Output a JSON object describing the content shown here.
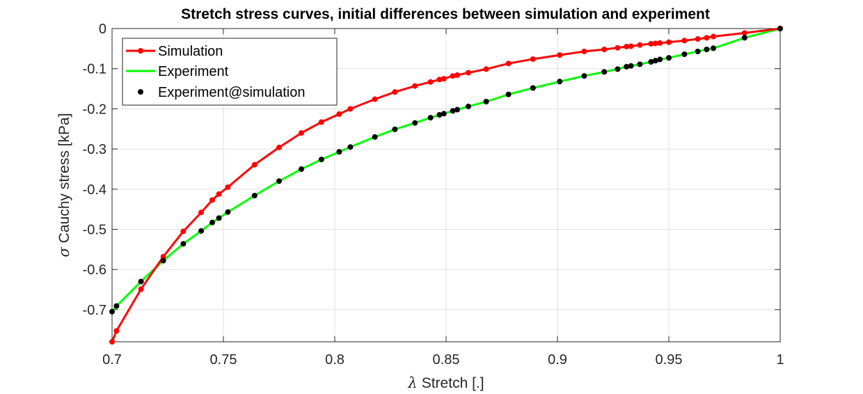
{
  "chart_data": {
    "type": "line",
    "title": "Stretch stress curves, initial differences between simulation and experiment",
    "xlabel_symbol": "λ",
    "xlabel": "Stretch [.]",
    "ylabel_symbol": "σ",
    "ylabel": "Cauchy stress [kPa]",
    "xlim": [
      0.7,
      1.0
    ],
    "ylim": [
      -0.78,
      0.0
    ],
    "xticks": [
      0.7,
      0.75,
      0.8,
      0.85,
      0.9,
      0.95,
      1.0
    ],
    "xtick_labels": [
      "0.7",
      "0.75",
      "0.8",
      "0.85",
      "0.9",
      "0.95",
      "1"
    ],
    "yticks": [
      0,
      -0.1,
      -0.2,
      -0.3,
      -0.4,
      -0.5,
      -0.6,
      -0.7
    ],
    "ytick_labels": [
      "0",
      "-0.1",
      "-0.2",
      "-0.3",
      "-0.4",
      "-0.5",
      "-0.6",
      "-0.7"
    ],
    "grid": true,
    "legend_position": "top-left",
    "series": [
      {
        "name": "Simulation",
        "color": "#ff0000",
        "style": "line-with-markers",
        "x": [
          0.7,
          0.702,
          0.713,
          0.723,
          0.732,
          0.74,
          0.745,
          0.748,
          0.752,
          0.764,
          0.775,
          0.785,
          0.794,
          0.802,
          0.807,
          0.818,
          0.827,
          0.836,
          0.843,
          0.847,
          0.849,
          0.853,
          0.855,
          0.86,
          0.868,
          0.878,
          0.889,
          0.901,
          0.912,
          0.921,
          0.927,
          0.931,
          0.933,
          0.937,
          0.942,
          0.944,
          0.946,
          0.95,
          0.957,
          0.963,
          0.967,
          0.97,
          0.984,
          1.0
        ],
        "y": [
          -0.78,
          -0.753,
          -0.649,
          -0.568,
          -0.505,
          -0.458,
          -0.427,
          -0.412,
          -0.395,
          -0.339,
          -0.296,
          -0.26,
          -0.233,
          -0.213,
          -0.2,
          -0.176,
          -0.158,
          -0.143,
          -0.133,
          -0.127,
          -0.125,
          -0.118,
          -0.116,
          -0.11,
          -0.101,
          -0.087,
          -0.076,
          -0.066,
          -0.057,
          -0.052,
          -0.048,
          -0.045,
          -0.044,
          -0.041,
          -0.038,
          -0.037,
          -0.036,
          -0.034,
          -0.03,
          -0.026,
          -0.023,
          -0.02,
          -0.011,
          0.0
        ]
      },
      {
        "name": "Experiment",
        "color": "#00ff00",
        "style": "line",
        "x": [
          0.7,
          0.702,
          0.713,
          0.723,
          0.732,
          0.74,
          0.745,
          0.748,
          0.752,
          0.764,
          0.775,
          0.785,
          0.794,
          0.802,
          0.807,
          0.818,
          0.827,
          0.836,
          0.843,
          0.847,
          0.849,
          0.853,
          0.855,
          0.86,
          0.868,
          0.878,
          0.889,
          0.901,
          0.912,
          0.921,
          0.927,
          0.931,
          0.933,
          0.937,
          0.942,
          0.944,
          0.946,
          0.95,
          0.957,
          0.963,
          0.967,
          0.97,
          0.984,
          1.0
        ],
        "y": [
          -0.705,
          -0.691,
          -0.63,
          -0.578,
          -0.536,
          -0.504,
          -0.483,
          -0.472,
          -0.457,
          -0.416,
          -0.38,
          -0.35,
          -0.326,
          -0.307,
          -0.295,
          -0.27,
          -0.251,
          -0.235,
          -0.222,
          -0.215,
          -0.212,
          -0.205,
          -0.202,
          -0.194,
          -0.182,
          -0.164,
          -0.148,
          -0.132,
          -0.118,
          -0.108,
          -0.101,
          -0.095,
          -0.093,
          -0.089,
          -0.083,
          -0.08,
          -0.077,
          -0.073,
          -0.064,
          -0.057,
          -0.052,
          -0.049,
          -0.023,
          0.0
        ]
      },
      {
        "name": "Experiment@simulation",
        "color": "#000000",
        "style": "markers",
        "x": [
          0.7,
          0.702,
          0.713,
          0.723,
          0.732,
          0.74,
          0.745,
          0.748,
          0.752,
          0.764,
          0.775,
          0.785,
          0.794,
          0.802,
          0.807,
          0.818,
          0.827,
          0.836,
          0.843,
          0.847,
          0.849,
          0.853,
          0.855,
          0.86,
          0.868,
          0.878,
          0.889,
          0.901,
          0.912,
          0.921,
          0.927,
          0.931,
          0.933,
          0.937,
          0.942,
          0.944,
          0.946,
          0.95,
          0.957,
          0.963,
          0.967,
          0.97,
          0.984,
          1.0
        ],
        "y": [
          -0.705,
          -0.691,
          -0.63,
          -0.578,
          -0.536,
          -0.504,
          -0.483,
          -0.472,
          -0.457,
          -0.416,
          -0.38,
          -0.35,
          -0.326,
          -0.307,
          -0.295,
          -0.27,
          -0.251,
          -0.235,
          -0.222,
          -0.215,
          -0.212,
          -0.205,
          -0.202,
          -0.194,
          -0.182,
          -0.164,
          -0.148,
          -0.132,
          -0.118,
          -0.108,
          -0.101,
          -0.095,
          -0.093,
          -0.089,
          -0.083,
          -0.08,
          -0.077,
          -0.073,
          -0.064,
          -0.057,
          -0.052,
          -0.049,
          -0.023,
          0.0
        ]
      }
    ]
  }
}
